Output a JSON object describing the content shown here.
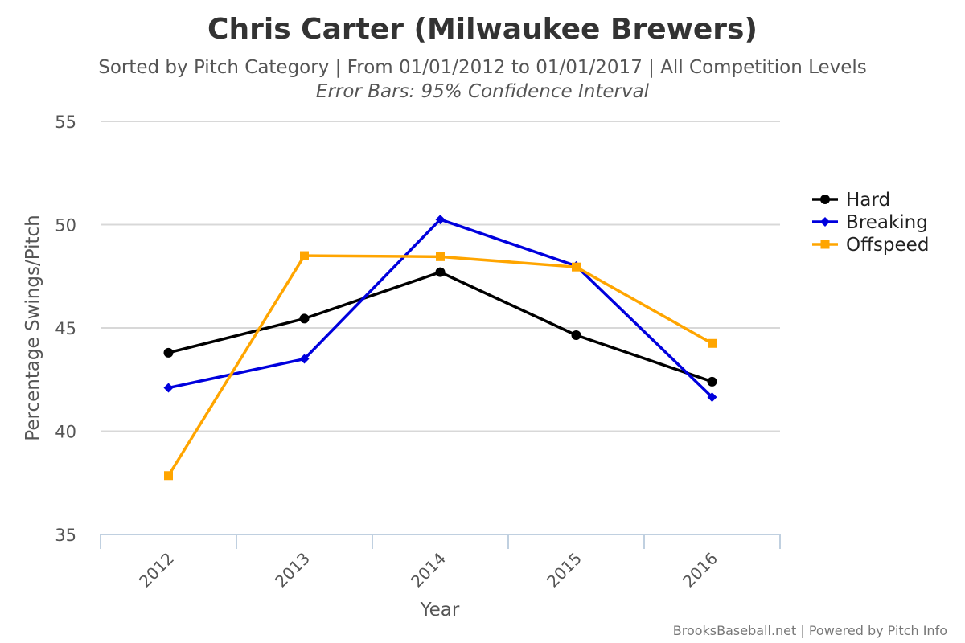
{
  "chart_data": {
    "type": "line",
    "title": "Chris Carter (Milwaukee Brewers)",
    "subtitle": "Sorted by Pitch Category | From 01/01/2012 to 01/01/2017 | All Competition Levels",
    "subtitle2": "Error Bars: 95% Confidence Interval",
    "xlabel": "Year",
    "ylabel": "Percentage Swings/Pitch",
    "categories": [
      "2012",
      "2013",
      "2014",
      "2015",
      "2016"
    ],
    "ylim": [
      35,
      55
    ],
    "yticks": [
      "35",
      "40",
      "45",
      "50",
      "55"
    ],
    "grid": true,
    "legend_position": "right",
    "series": [
      {
        "name": "Hard",
        "color": "#000000",
        "marker": "circle",
        "values": [
          43.8,
          45.45,
          47.7,
          44.65,
          42.4
        ]
      },
      {
        "name": "Breaking",
        "color": "#0000dd",
        "marker": "diamond",
        "values": [
          42.1,
          43.5,
          50.25,
          48.0,
          41.65
        ]
      },
      {
        "name": "Offspeed",
        "color": "#ffa500",
        "marker": "square",
        "values": [
          37.85,
          48.5,
          48.45,
          47.95,
          44.25
        ]
      }
    ],
    "credit": "BrooksBaseball.net | Powered by Pitch Info"
  }
}
